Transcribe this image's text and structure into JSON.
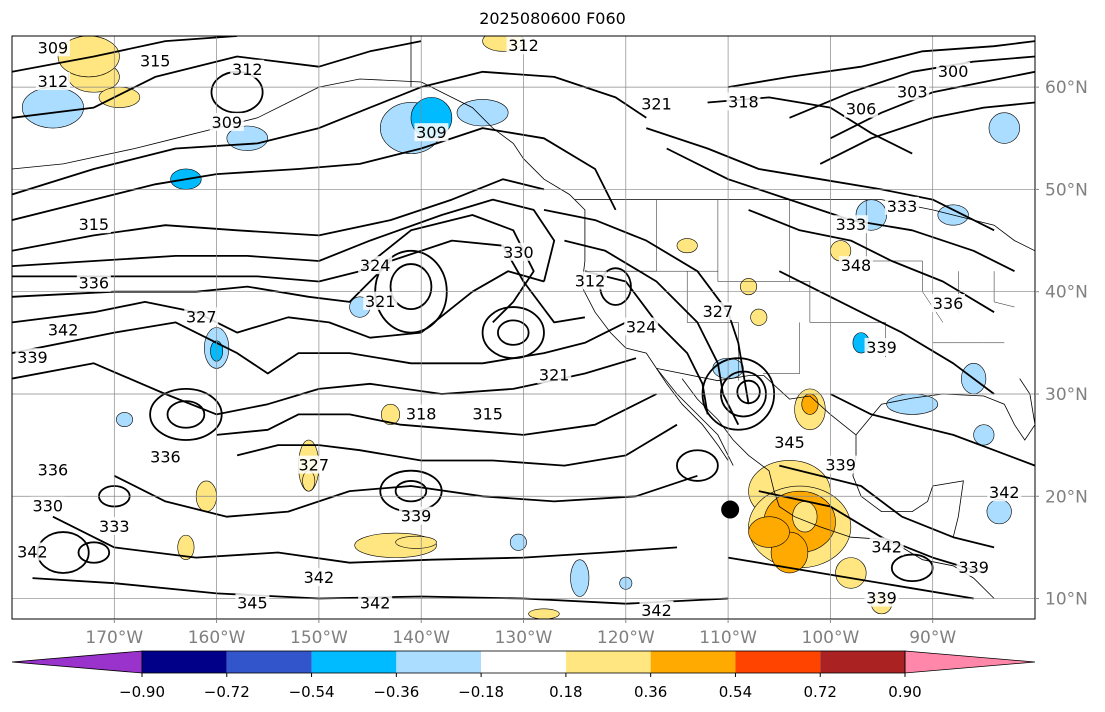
{
  "title": "2025080600 F060",
  "map": {
    "lon_min": -180,
    "lon_max": -80,
    "lat_min": 8,
    "lat_max": 65,
    "lon_ticks": [
      {
        "value": -170,
        "label": "170°W"
      },
      {
        "value": -160,
        "label": "160°W"
      },
      {
        "value": -150,
        "label": "150°W"
      },
      {
        "value": -140,
        "label": "140°W"
      },
      {
        "value": -130,
        "label": "130°W"
      },
      {
        "value": -120,
        "label": "120°W"
      },
      {
        "value": -110,
        "label": "110°W"
      },
      {
        "value": -100,
        "label": "100°W"
      },
      {
        "value": -90,
        "label": "90°W"
      }
    ],
    "lat_ticks": [
      {
        "value": 10,
        "label": "10°N"
      },
      {
        "value": 20,
        "label": "20°N"
      },
      {
        "value": 30,
        "label": "30°N"
      },
      {
        "value": 40,
        "label": "40°N"
      },
      {
        "value": 50,
        "label": "50°N"
      },
      {
        "value": 60,
        "label": "60°N"
      }
    ],
    "gridlines": true,
    "contour_labels": [
      {
        "text": "309",
        "lon": -176,
        "lat": 63.8
      },
      {
        "text": "312",
        "lon": -176,
        "lat": 60.5
      },
      {
        "text": "315",
        "lon": -166,
        "lat": 62.5
      },
      {
        "text": "312",
        "lon": -157,
        "lat": 61.7
      },
      {
        "text": "309",
        "lon": -159,
        "lat": 56.5
      },
      {
        "text": "309",
        "lon": -139,
        "lat": 55.5
      },
      {
        "text": "312",
        "lon": -130,
        "lat": 64.0
      },
      {
        "text": "321",
        "lon": -117,
        "lat": 58.3
      },
      {
        "text": "318",
        "lon": -108.5,
        "lat": 58.5
      },
      {
        "text": "300",
        "lon": -88,
        "lat": 61.5
      },
      {
        "text": "303",
        "lon": -92,
        "lat": 59.5
      },
      {
        "text": "306",
        "lon": -97,
        "lat": 57.8
      },
      {
        "text": "315",
        "lon": -172,
        "lat": 46.5
      },
      {
        "text": "336",
        "lon": -172,
        "lat": 40.8
      },
      {
        "text": "327",
        "lon": -161.5,
        "lat": 37.5
      },
      {
        "text": "342",
        "lon": -175,
        "lat": 36.2
      },
      {
        "text": "339",
        "lon": -178,
        "lat": 33.5
      },
      {
        "text": "324",
        "lon": -144.5,
        "lat": 42.5
      },
      {
        "text": "321",
        "lon": -144,
        "lat": 39.0
      },
      {
        "text": "330",
        "lon": -130.5,
        "lat": 43.8
      },
      {
        "text": "312",
        "lon": -123.5,
        "lat": 41.0
      },
      {
        "text": "324",
        "lon": -118.5,
        "lat": 36.5
      },
      {
        "text": "321",
        "lon": -127,
        "lat": 31.8
      },
      {
        "text": "327",
        "lon": -111,
        "lat": 38.0
      },
      {
        "text": "333",
        "lon": -93,
        "lat": 48.3
      },
      {
        "text": "333",
        "lon": -98,
        "lat": 46.5
      },
      {
        "text": "348",
        "lon": -97.5,
        "lat": 42.5
      },
      {
        "text": "336",
        "lon": -88.5,
        "lat": 38.8
      },
      {
        "text": "339",
        "lon": -95,
        "lat": 34.5
      },
      {
        "text": "318",
        "lon": -140,
        "lat": 28.0
      },
      {
        "text": "315",
        "lon": -133.5,
        "lat": 28.0
      },
      {
        "text": "336",
        "lon": -176,
        "lat": 22.5
      },
      {
        "text": "336",
        "lon": -165,
        "lat": 23.8
      },
      {
        "text": "330",
        "lon": -176.5,
        "lat": 19.0
      },
      {
        "text": "333",
        "lon": -170,
        "lat": 17.0
      },
      {
        "text": "342",
        "lon": -178,
        "lat": 14.5
      },
      {
        "text": "327",
        "lon": -150.5,
        "lat": 23.0
      },
      {
        "text": "339",
        "lon": -140.5,
        "lat": 18.0
      },
      {
        "text": "342",
        "lon": -150,
        "lat": 12.0
      },
      {
        "text": "345",
        "lon": -156.5,
        "lat": 9.5
      },
      {
        "text": "342",
        "lon": -144.5,
        "lat": 9.5
      },
      {
        "text": "342",
        "lon": -117,
        "lat": 8.8
      },
      {
        "text": "345",
        "lon": -104,
        "lat": 25.2
      },
      {
        "text": "339",
        "lon": -99,
        "lat": 23.0
      },
      {
        "text": "342",
        "lon": -94.5,
        "lat": 15.0
      },
      {
        "text": "339",
        "lon": -95,
        "lat": 10.0
      },
      {
        "text": "339",
        "lon": -86,
        "lat": 13.0
      },
      {
        "text": "342",
        "lon": -83,
        "lat": 20.3
      }
    ],
    "center_marker": {
      "lon": -109.8,
      "lat": 18.7
    }
  },
  "colorbar": {
    "colors": [
      "#9933cc",
      "#000088",
      "#3355cc",
      "#00bbff",
      "#aaddff",
      "#ffffff",
      "#ffe680",
      "#ffaa00",
      "#ff4400",
      "#aa2222",
      "#ff88aa"
    ],
    "ticks": [
      {
        "value": -0.9,
        "label": "−0.90"
      },
      {
        "value": -0.72,
        "label": "−0.72"
      },
      {
        "value": -0.54,
        "label": "−0.54"
      },
      {
        "value": -0.36,
        "label": "−0.36"
      },
      {
        "value": -0.18,
        "label": "−0.18"
      },
      {
        "value": 0.18,
        "label": "0.18"
      },
      {
        "value": 0.36,
        "label": "0.36"
      },
      {
        "value": 0.54,
        "label": "0.54"
      },
      {
        "value": 0.72,
        "label": "0.72"
      },
      {
        "value": 0.9,
        "label": "0.90"
      }
    ]
  }
}
